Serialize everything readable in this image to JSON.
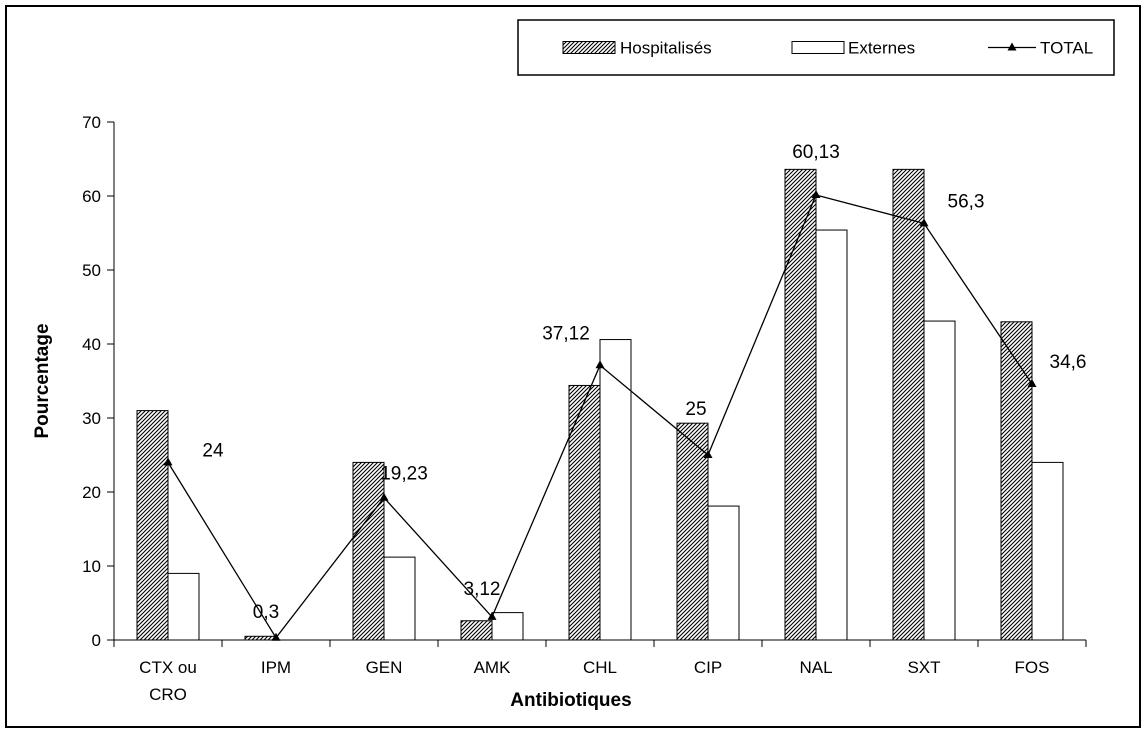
{
  "chart_data": {
    "type": "bar",
    "title": "",
    "xlabel": "Antibiotiques",
    "ylabel": "Pourcentage",
    "ylim": [
      0,
      70
    ],
    "yticks": [
      0,
      10,
      20,
      30,
      40,
      50,
      60,
      70
    ],
    "grid": false,
    "legend_position": "top-right",
    "categories": [
      [
        "CTX ou",
        "CRO"
      ],
      [
        "IPM"
      ],
      [
        "GEN"
      ],
      [
        "AMK"
      ],
      [
        "CHL"
      ],
      [
        "CIP"
      ],
      [
        "NAL"
      ],
      [
        "SXT"
      ],
      [
        "FOS"
      ]
    ],
    "series": [
      {
        "name": "Hospitalisés",
        "type": "bar",
        "pattern": "diagonal-hatch",
        "values": [
          31,
          0.5,
          24,
          2.6,
          34.4,
          29.3,
          63.6,
          63.6,
          43
        ]
      },
      {
        "name": "Externes",
        "type": "bar",
        "pattern": "none",
        "values": [
          9,
          0,
          11.2,
          3.7,
          40.6,
          18.1,
          55.4,
          43.1,
          24
        ]
      },
      {
        "name": "TOTAL",
        "type": "line",
        "marker": "triangle",
        "values": [
          24,
          0.3,
          19.23,
          3.12,
          37.12,
          25,
          60.13,
          56.3,
          34.6
        ],
        "labels": [
          "24",
          "0,3",
          "19,23",
          "3,12",
          "37,12",
          "25",
          "60,13",
          "56,3",
          "34,6"
        ]
      }
    ]
  }
}
